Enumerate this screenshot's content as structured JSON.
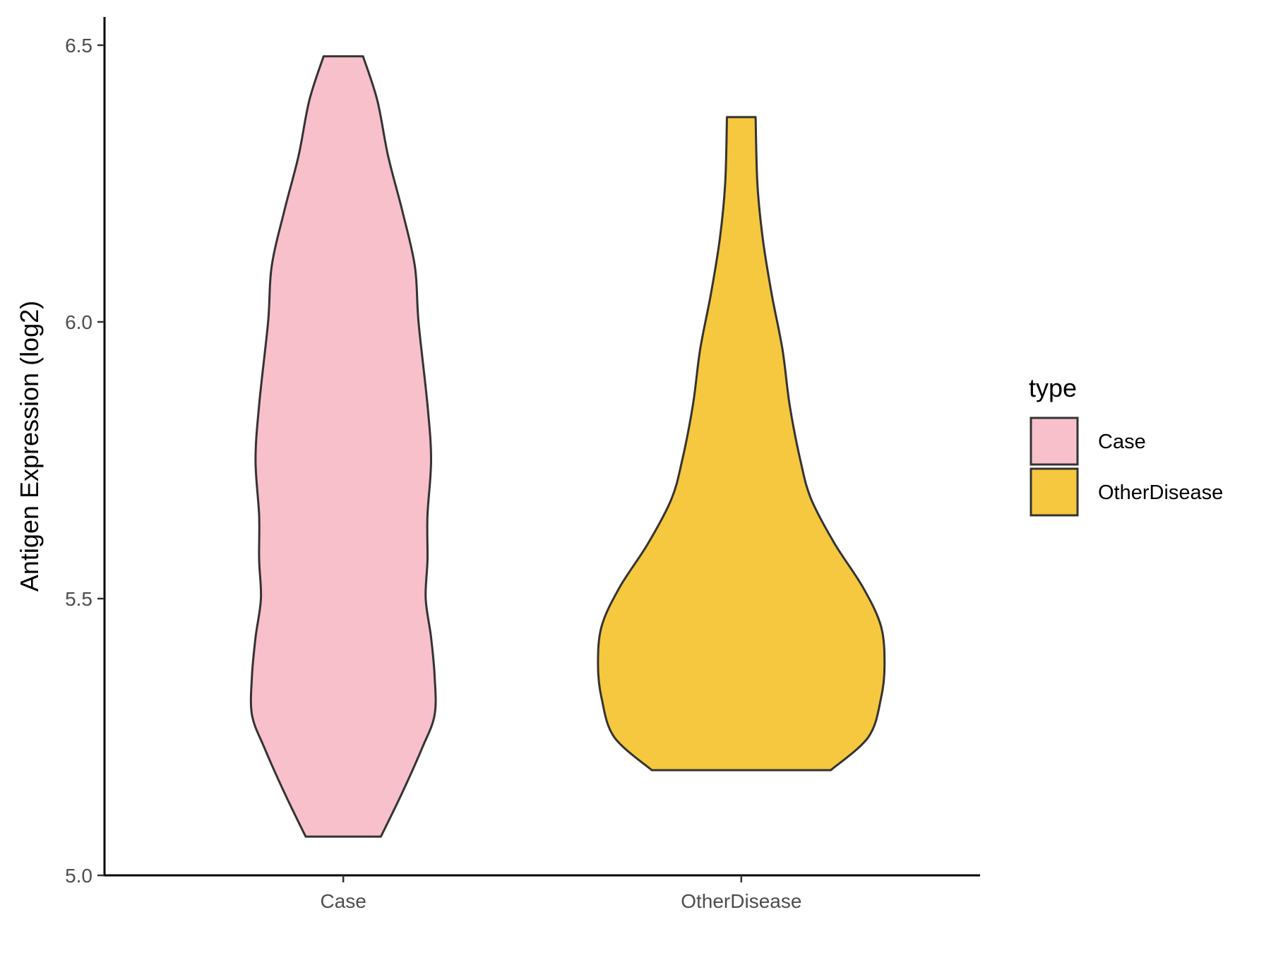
{
  "chart_data": {
    "type": "violin",
    "title": "",
    "xlabel": "",
    "ylabel": "Antigen Expression (log2)",
    "categories": [
      "Case",
      "OtherDisease"
    ],
    "ylim": [
      5.0,
      6.55
    ],
    "yticks": [
      "5.0",
      "5.5",
      "6.0",
      "6.5"
    ],
    "grid": false,
    "legend": {
      "title": "type",
      "position": "right",
      "entries": [
        "Case",
        "OtherDisease"
      ]
    },
    "series": [
      {
        "category": "Case",
        "color": "#F8C0CB",
        "min": 5.07,
        "max": 6.48,
        "density": [
          [
            5.07,
            0.21
          ],
          [
            5.15,
            0.33
          ],
          [
            5.23,
            0.44
          ],
          [
            5.29,
            0.51
          ],
          [
            5.36,
            0.51
          ],
          [
            5.43,
            0.49
          ],
          [
            5.5,
            0.46
          ],
          [
            5.57,
            0.47
          ],
          [
            5.65,
            0.47
          ],
          [
            5.75,
            0.49
          ],
          [
            5.85,
            0.47
          ],
          [
            6.0,
            0.42
          ],
          [
            6.1,
            0.4
          ],
          [
            6.2,
            0.33
          ],
          [
            6.3,
            0.25
          ],
          [
            6.4,
            0.19
          ],
          [
            6.48,
            0.11
          ]
        ]
      },
      {
        "category": "OtherDisease",
        "color": "#F6C83F",
        "min": 5.19,
        "max": 6.37,
        "density": [
          [
            5.19,
            0.5
          ],
          [
            5.25,
            0.71
          ],
          [
            5.32,
            0.78
          ],
          [
            5.38,
            0.8
          ],
          [
            5.45,
            0.78
          ],
          [
            5.52,
            0.68
          ],
          [
            5.6,
            0.52
          ],
          [
            5.68,
            0.39
          ],
          [
            5.75,
            0.33
          ],
          [
            5.85,
            0.27
          ],
          [
            5.95,
            0.23
          ],
          [
            6.05,
            0.17
          ],
          [
            6.15,
            0.12
          ],
          [
            6.25,
            0.09
          ],
          [
            6.37,
            0.08
          ]
        ]
      }
    ]
  }
}
